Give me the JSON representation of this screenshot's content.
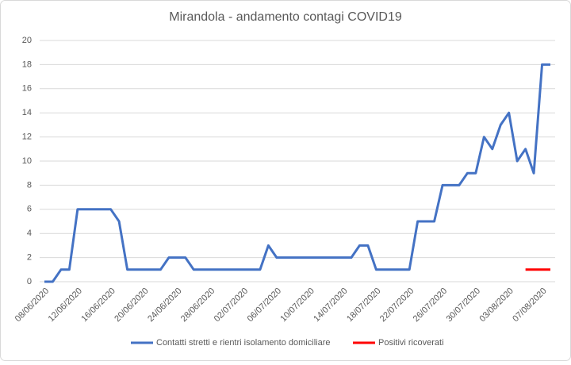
{
  "chart_data": {
    "type": "line",
    "title": "Mirandola - andamento contagi COVID19",
    "categories": [
      "08/06/2020",
      null,
      null,
      null,
      "12/06/2020",
      null,
      null,
      null,
      "16/06/2020",
      null,
      null,
      null,
      "20/06/2020",
      null,
      null,
      null,
      "24/06/2020",
      null,
      null,
      null,
      "28/06/2020",
      null,
      null,
      null,
      "02/07/2020",
      null,
      null,
      null,
      "06/07/2020",
      null,
      null,
      null,
      "10/07/2020",
      null,
      null,
      null,
      "14/07/2020",
      null,
      null,
      null,
      "18/07/2020",
      null,
      null,
      null,
      "22/07/2020",
      null,
      null,
      null,
      "26/07/2020",
      null,
      null,
      null,
      "30/07/2020",
      null,
      null,
      null,
      "03/08/2020",
      null,
      null,
      null,
      "07/08/2020",
      null
    ],
    "series": [
      {
        "name": "Contatti stretti e rientri isolamento domiciliare",
        "color": "#4472c4",
        "values": [
          0,
          0,
          1,
          1,
          6,
          6,
          6,
          6,
          6,
          5,
          1,
          1,
          1,
          1,
          1,
          2,
          2,
          2,
          1,
          1,
          1,
          1,
          1,
          1,
          1,
          1,
          1,
          3,
          2,
          2,
          2,
          2,
          2,
          2,
          2,
          2,
          2,
          2,
          3,
          3,
          1,
          1,
          1,
          1,
          1,
          5,
          5,
          5,
          8,
          8,
          8,
          9,
          9,
          12,
          11,
          13,
          14,
          10,
          11,
          9,
          18,
          18
        ]
      },
      {
        "name": "Positivi ricoverati",
        "color": "#ff0000",
        "values": [
          null,
          null,
          null,
          null,
          null,
          null,
          null,
          null,
          null,
          null,
          null,
          null,
          null,
          null,
          null,
          null,
          null,
          null,
          null,
          null,
          null,
          null,
          null,
          null,
          null,
          null,
          null,
          null,
          null,
          null,
          null,
          null,
          null,
          null,
          null,
          null,
          null,
          null,
          null,
          null,
          null,
          null,
          null,
          null,
          null,
          null,
          null,
          null,
          null,
          null,
          null,
          null,
          null,
          null,
          null,
          null,
          null,
          null,
          1,
          1,
          1,
          1
        ]
      }
    ],
    "ylim": [
      0,
      20
    ],
    "yticks": [
      0,
      2,
      4,
      6,
      8,
      10,
      12,
      14,
      16,
      18,
      20
    ],
    "grid": true
  }
}
